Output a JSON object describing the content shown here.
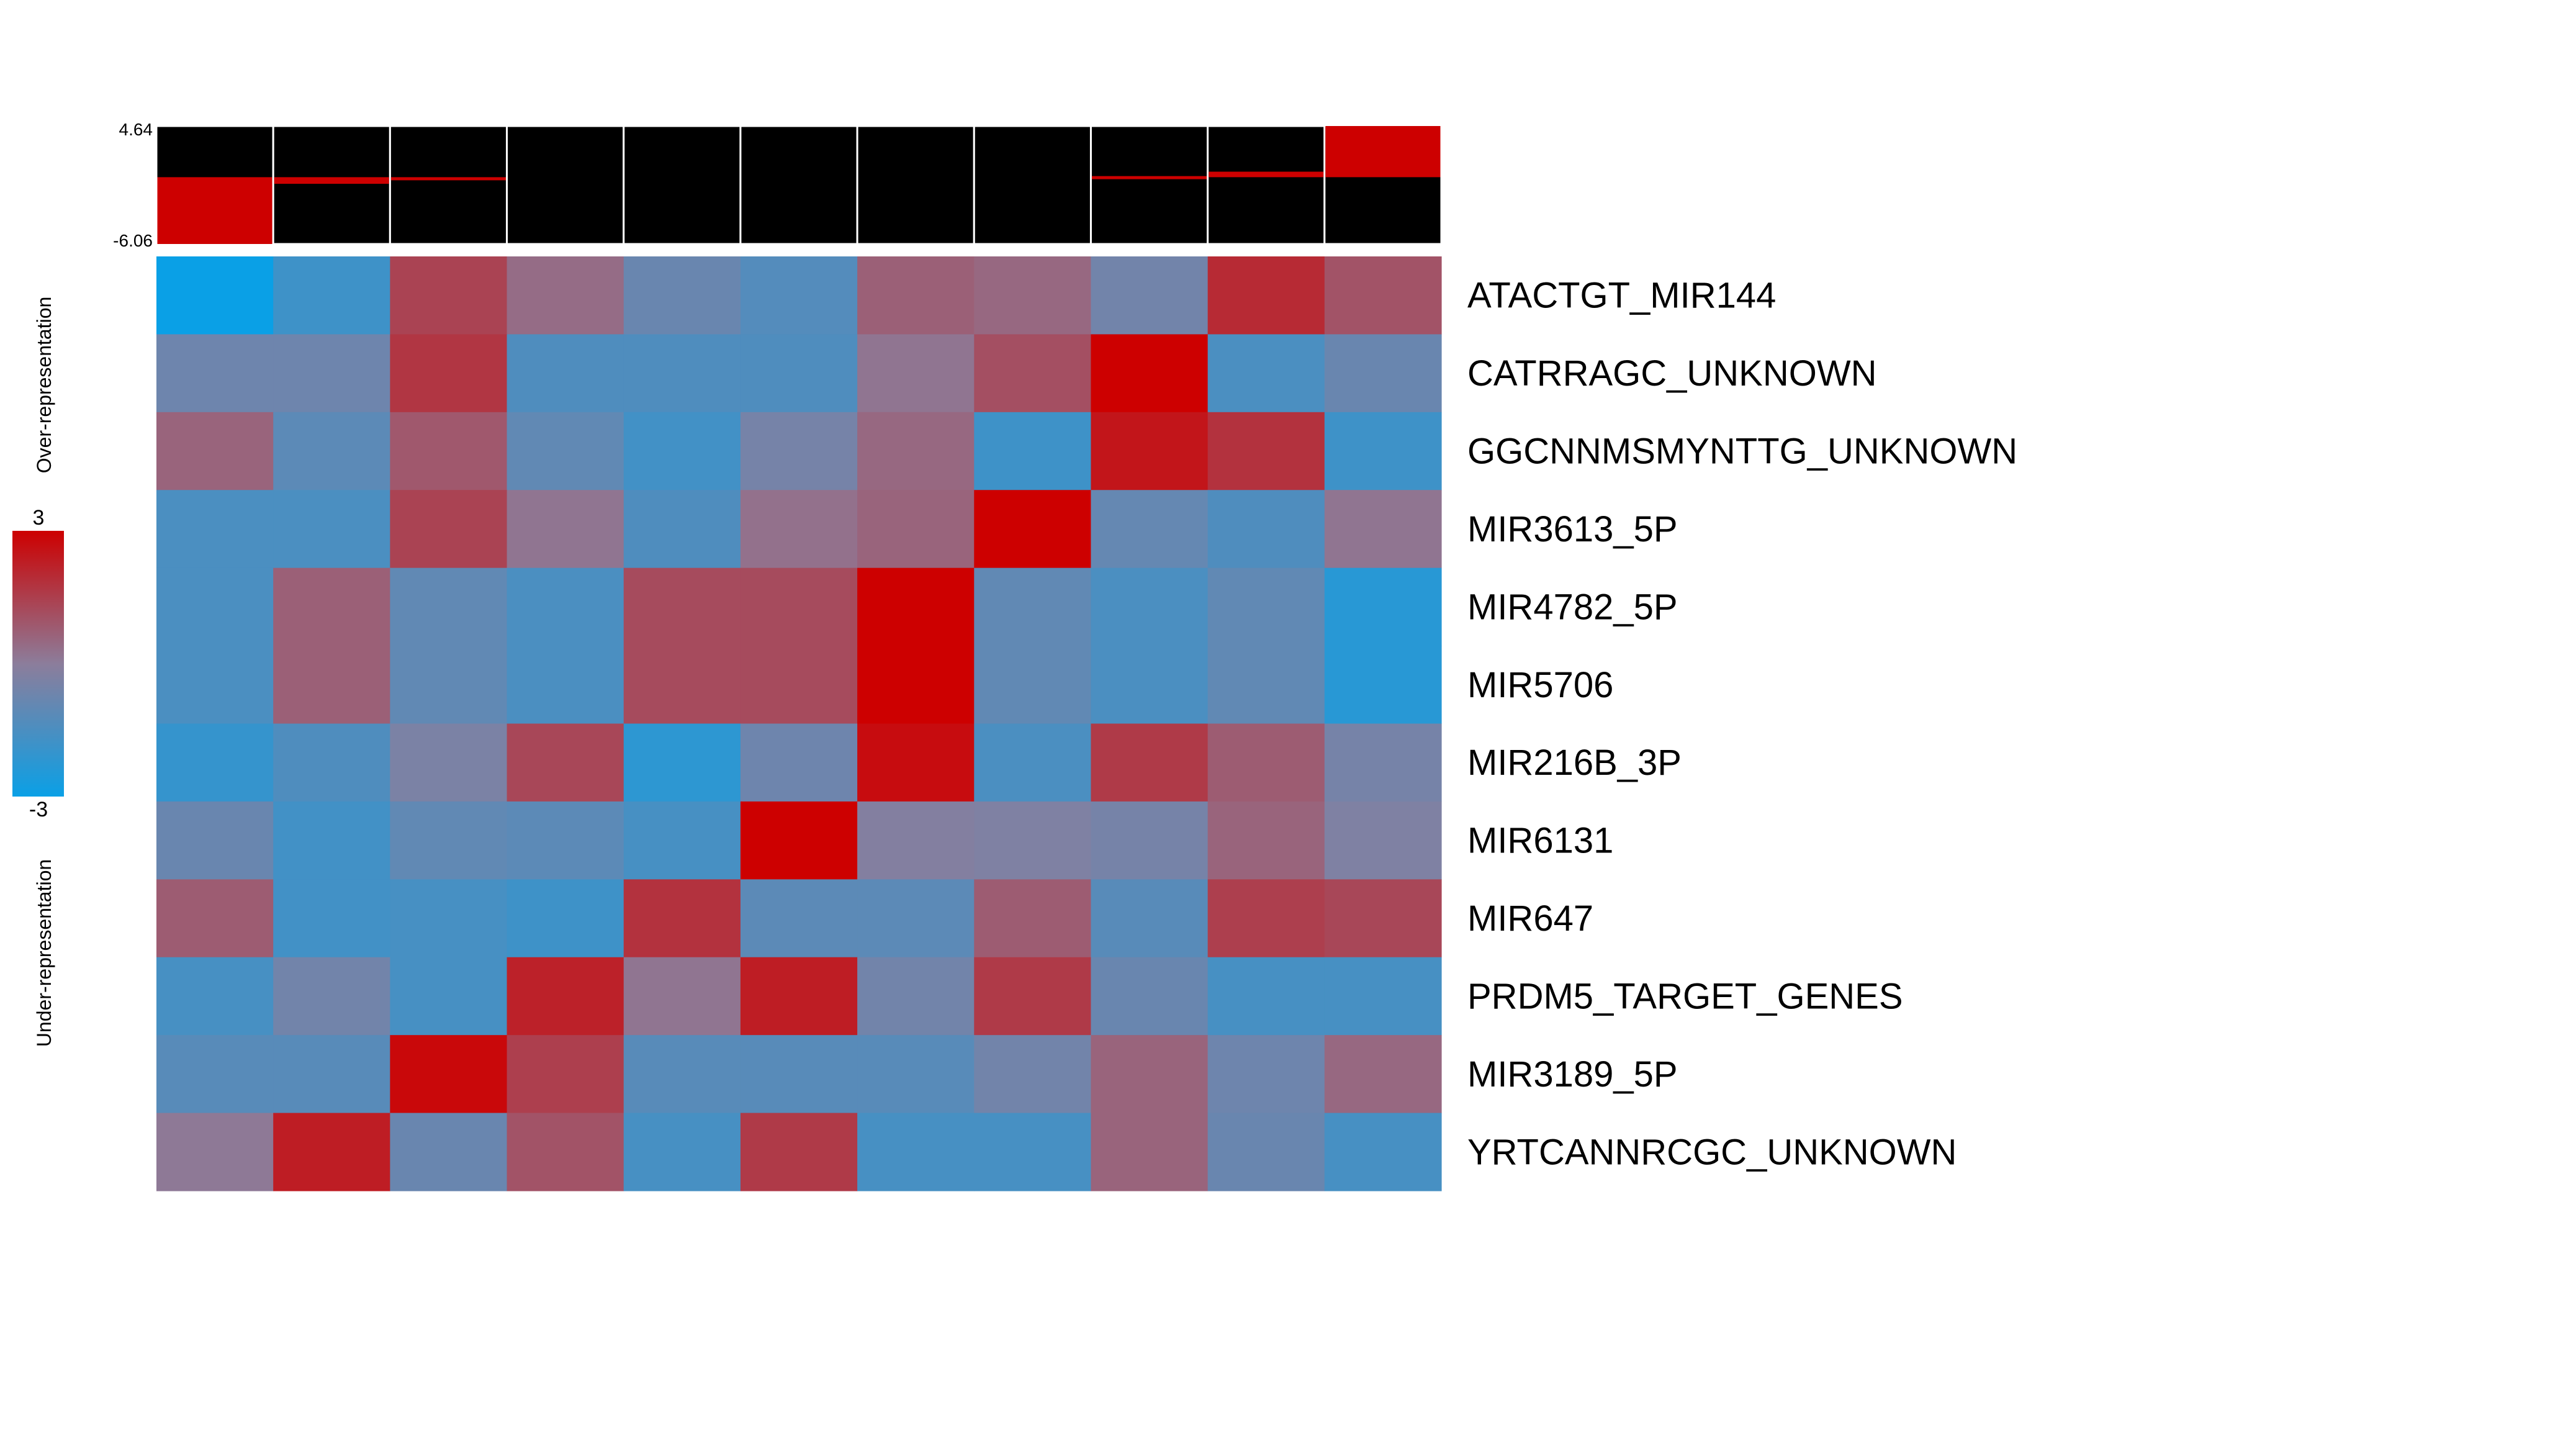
{
  "chart_data": {
    "type": "heatmap",
    "rows": [
      "ATACTGT_MIR144",
      "CATRRAGC_UNKNOWN",
      "GGCNNMSMYNTTG_UNKNOWN",
      "MIR3613_5P",
      "MIR4782_5P",
      "MIR5706",
      "MIR216B_3P",
      "MIR6131",
      "MIR647",
      "PRDM5_TARGET_GENES",
      "MIR3189_5P",
      "YRTCANNRCGC_UNKNOWN"
    ],
    "values": [
      [
        -3.0,
        -1.8,
        1.4,
        0.4,
        -0.8,
        -1.3,
        0.7,
        0.5,
        -0.6,
        2.0,
        1.0
      ],
      [
        -0.7,
        -0.7,
        1.7,
        -1.4,
        -1.4,
        -1.4,
        0.2,
        1.1,
        3.0,
        -1.5,
        -0.8
      ],
      [
        0.6,
        -1.1,
        0.9,
        -1.0,
        -1.7,
        -0.5,
        0.5,
        -1.8,
        2.5,
        1.8,
        -1.8
      ],
      [
        -1.5,
        -1.5,
        1.4,
        0.2,
        -1.4,
        0.3,
        0.6,
        3.0,
        -0.9,
        -1.4,
        0.2
      ],
      [
        -1.5,
        0.7,
        -1.0,
        -1.5,
        1.2,
        1.2,
        3.0,
        -1.0,
        -1.5,
        -1.0,
        -2.3
      ],
      [
        -1.5,
        0.7,
        -1.0,
        -1.5,
        1.2,
        1.2,
        3.0,
        -1.0,
        -1.5,
        -1.0,
        -2.3
      ],
      [
        -2.0,
        -1.4,
        -0.4,
        1.3,
        -2.2,
        -0.7,
        2.7,
        -1.5,
        1.6,
        0.8,
        -0.5
      ],
      [
        -0.8,
        -1.7,
        -1.0,
        -1.1,
        -1.6,
        3.0,
        -0.2,
        -0.3,
        -0.5,
        0.6,
        -0.3
      ],
      [
        0.8,
        -1.7,
        -1.6,
        -1.8,
        1.8,
        -1.1,
        -1.1,
        0.8,
        -1.2,
        1.5,
        1.3
      ],
      [
        -1.6,
        -0.6,
        -1.6,
        2.2,
        0.2,
        2.3,
        -0.6,
        1.6,
        -0.8,
        -1.6,
        -1.6
      ],
      [
        -1.2,
        -1.2,
        2.8,
        1.5,
        -1.2,
        -1.2,
        -1.2,
        -0.6,
        0.6,
        -0.7,
        0.5
      ],
      [
        0.1,
        2.3,
        -0.8,
        1.0,
        -1.6,
        1.6,
        -1.6,
        -1.6,
        0.6,
        -0.8,
        -1.6
      ]
    ],
    "top_bars": {
      "max_label": "4.64",
      "min_label": "-6.06",
      "max": 4.64,
      "min": -6.06,
      "values": [
        -6.06,
        -0.6,
        -0.2,
        0.0,
        0.0,
        0.0,
        0.0,
        0.0,
        0.1,
        0.5,
        4.64
      ]
    },
    "colorbar": {
      "max_label": "3",
      "min_label": "-3",
      "min": -3,
      "max": 3,
      "upper_label": "Over-representation",
      "lower_label": "Under-representation"
    },
    "colors": {
      "low": "#0aa0e6",
      "mid": "#8c7d9b",
      "high": "#cd0000",
      "bar_bg": "#000000",
      "bar_fill": "#cd0000"
    }
  }
}
